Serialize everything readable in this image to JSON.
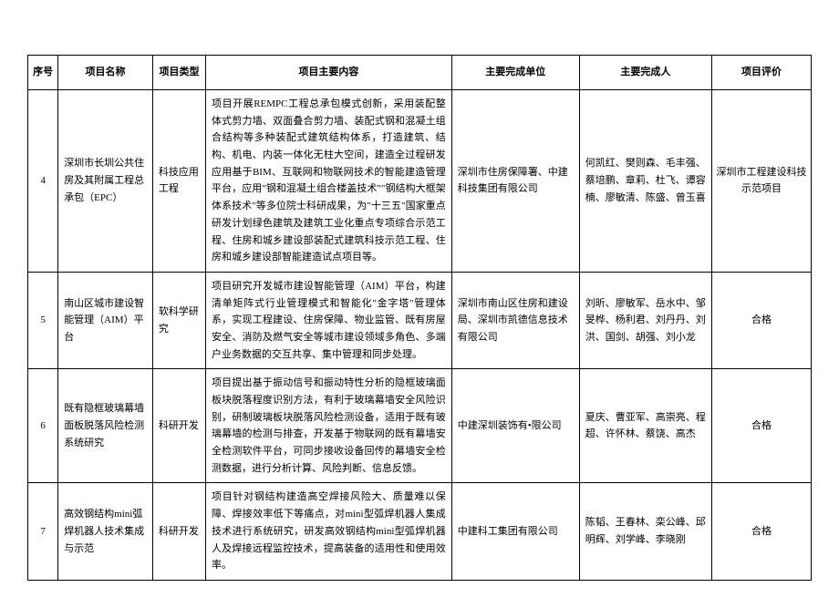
{
  "table": {
    "columns": [
      {
        "key": "seq",
        "label": "序号",
        "class": "col-seq",
        "align": "center"
      },
      {
        "key": "name",
        "label": "项目名称",
        "class": "col-name",
        "align": "left"
      },
      {
        "key": "type",
        "label": "项目类型",
        "class": "col-type",
        "align": "left"
      },
      {
        "key": "content",
        "label": "项目主要内容",
        "class": "col-content",
        "align": "justify"
      },
      {
        "key": "unit",
        "label": "主要完成单位",
        "class": "col-unit",
        "align": "left"
      },
      {
        "key": "person",
        "label": "主要完成人",
        "class": "col-person",
        "align": "left"
      },
      {
        "key": "eval",
        "label": "项目评价",
        "class": "col-eval",
        "align": "center"
      }
    ],
    "rows": [
      {
        "seq": "4",
        "name": "深圳市长圳公共住房及其附属工程总承包（EPC）",
        "type": "科技应用工程",
        "content": "项目开展REMPC工程总承包模式创新，采用装配整体式剪力墙、双面叠合剪力墙、装配式钢和混凝土组合结构等多种装配式建筑结构体系，打造建筑、结构、机电、内装一体化无柱大空间，建造全过程研发应用基于BIM、互联网和物联网技术的智能建造管理平台，应用\"钢和混凝土组合楼盖技术\"\"钢结构大框架体系技术\"等多位院士科研成果，为\"十三五\"国家重点研发计划绿色建筑及建筑工业化重点专项综合示范工程、住房和城乡建设部装配式建筑科技示范工程、住房和城乡建设部智能建造试点项目等。",
        "unit": "深圳市住房保障署、中建科技集团有限公司",
        "person": "何凯红、樊则森、毛丰强、蔡培鹏、章莉、杜飞、谭容楠、廖敏清、陈盛、曾玉喜",
        "eval": "深圳市工程建设科技示范项目"
      },
      {
        "seq": "5",
        "name": "南山区城市建设智能管理（AIM）平台",
        "type": "软科学研究",
        "content": "项目研究开发城市建设智能管理（AIM）平台，构建清单矩阵式行业管理模式和智能化\"金字塔\"管理体系，实现工程建设、住房保障、物业监管、既有房屋安全、消防及燃气安全等城市建设领域多角色、多端户业务数据的交互共享、集中管理和同步处理。",
        "unit": "深圳市南山区住房和建设局、深圳市凯德信息技术有限公司",
        "person": "刘昕、廖敏军、岳水中、邹旻桦、杨利君、刘丹丹、刘洪、国剑、胡强、刘小龙",
        "eval": "合格"
      },
      {
        "seq": "6",
        "name": "既有隐框玻璃幕墙面板脱落风险检测系统研究",
        "type": "科研开发",
        "content": "项目提出基于振动信号和振动特性分析的隐框玻璃面板块脱落程度识别方法，有利于玻璃幕墙安全风险识别，研制玻璃板块脱落风险检测设备，适用于既有玻璃幕墙的检测与排查，开发基于物联网的既有幕墙安全检测软件平台，可同步接收设备回传的幕墙安全检测数据，进行分析计算、风险判断、信息反馈。",
        "unit": "中建深圳装饰有•限公司",
        "person": "夏庆、曹亚军、高崇亮、程超、许怀林、蔡饶、高杰",
        "eval": "合格"
      },
      {
        "seq": "7",
        "name": "高效钢结构mini弧焊机器人技术集成与示范",
        "type": "科研开发",
        "content": "项目针对钢结构建造高空焊接风险大、质量难以保障、焊接效率低下等痛点，对mini型弧焊机器人集成技术进行系统研究，研发高效钢结构mini型弧焊机器人及焊接远程监控技术，提高装备的适用性和使用效率。",
        "unit": "中建科工集团有限公司",
        "person": "陈韬、王春林、栾公峰、邱明辉、刘学峰、李晓刚",
        "eval": "合格"
      }
    ],
    "style": {
      "border_color": "#000000",
      "background_color": "#ffffff",
      "text_color": "#000000",
      "font_size": 11,
      "line_height": 1.7,
      "header_font_weight": "bold"
    }
  }
}
